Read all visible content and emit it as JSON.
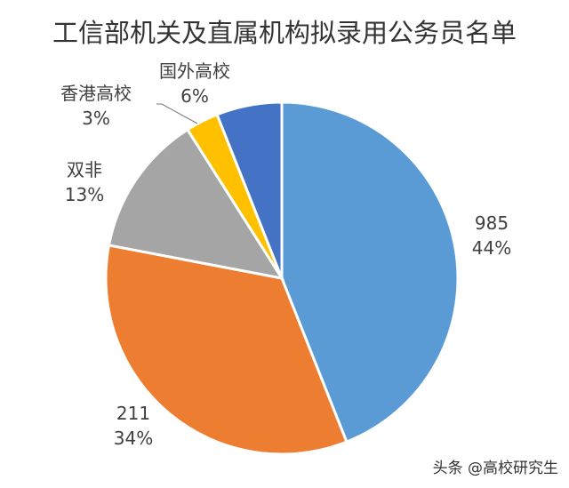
{
  "chart_data": {
    "type": "pie",
    "title": "工信部机关及直属机构拟录用公务员名单",
    "start": "top",
    "direction": "clockwise",
    "slices": [
      {
        "label": "985",
        "percent_label": "44%",
        "value": 44,
        "color": "#5B9BD5"
      },
      {
        "label": "211",
        "percent_label": "34%",
        "value": 34,
        "color": "#ED7D31"
      },
      {
        "label": "双非",
        "percent_label": "13%",
        "value": 13,
        "color": "#A5A5A5"
      },
      {
        "label": "香港高校",
        "percent_label": "3%",
        "value": 3,
        "color": "#FFC000"
      },
      {
        "label": "国外高校",
        "percent_label": "6%",
        "value": 6,
        "color": "#4472C4"
      }
    ]
  },
  "watermark": "头条 @高校研究生"
}
